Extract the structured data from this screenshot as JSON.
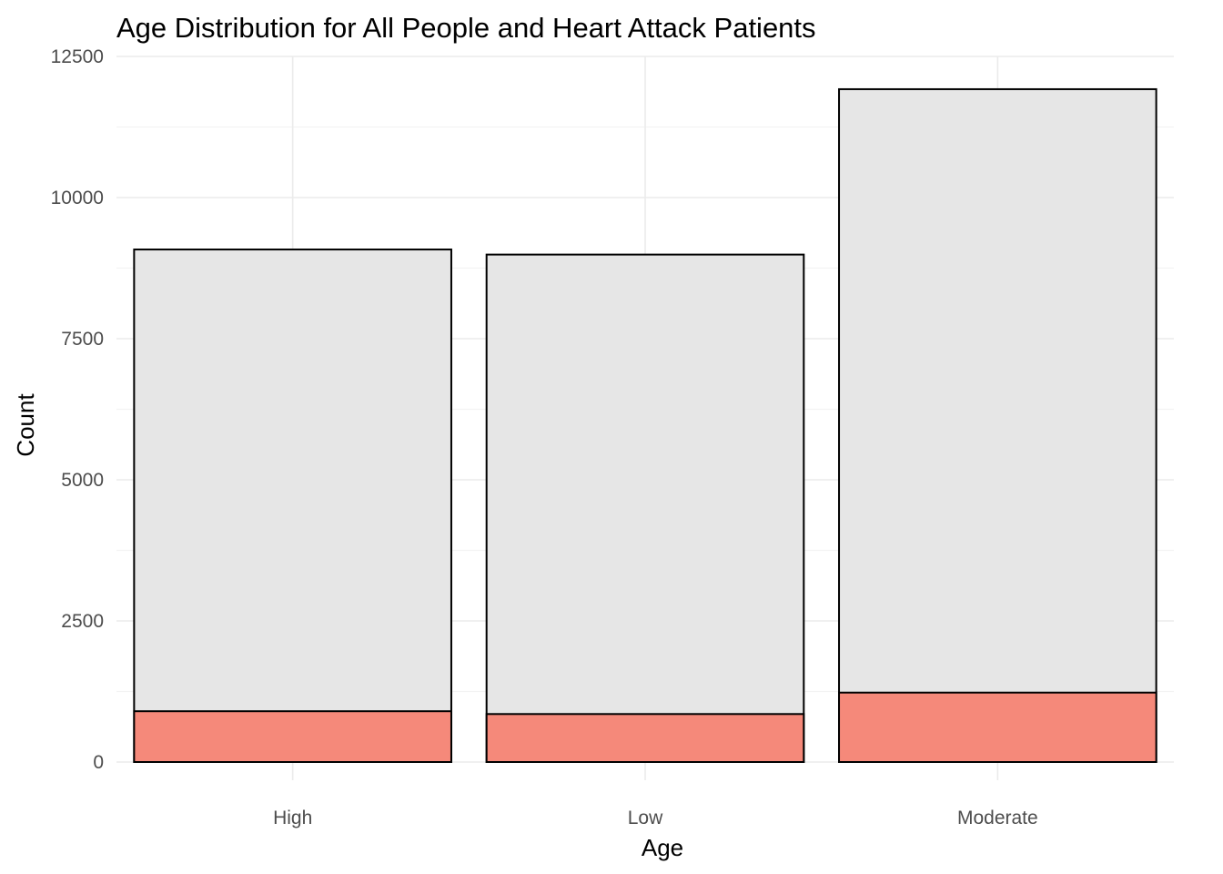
{
  "chart_data": {
    "type": "bar",
    "title": "Age Distribution for All People and Heart Attack Patients",
    "xlabel": "Age",
    "ylabel": "Count",
    "categories": [
      "High",
      "Low",
      "Moderate"
    ],
    "series": [
      {
        "values": [
          9080,
          8990,
          11920
        ],
        "color": "#e6e6e6"
      },
      {
        "values": [
          900,
          850,
          1230
        ],
        "color": "#f5897a"
      }
    ],
    "ylim": [
      0,
      12500
    ],
    "yticks": [
      0,
      2500,
      5000,
      7500,
      10000,
      12500
    ],
    "ytick_labels": [
      "0",
      "2500",
      "5000",
      "7500",
      "10000",
      "12500"
    ],
    "grid": true,
    "overlay": true
  }
}
